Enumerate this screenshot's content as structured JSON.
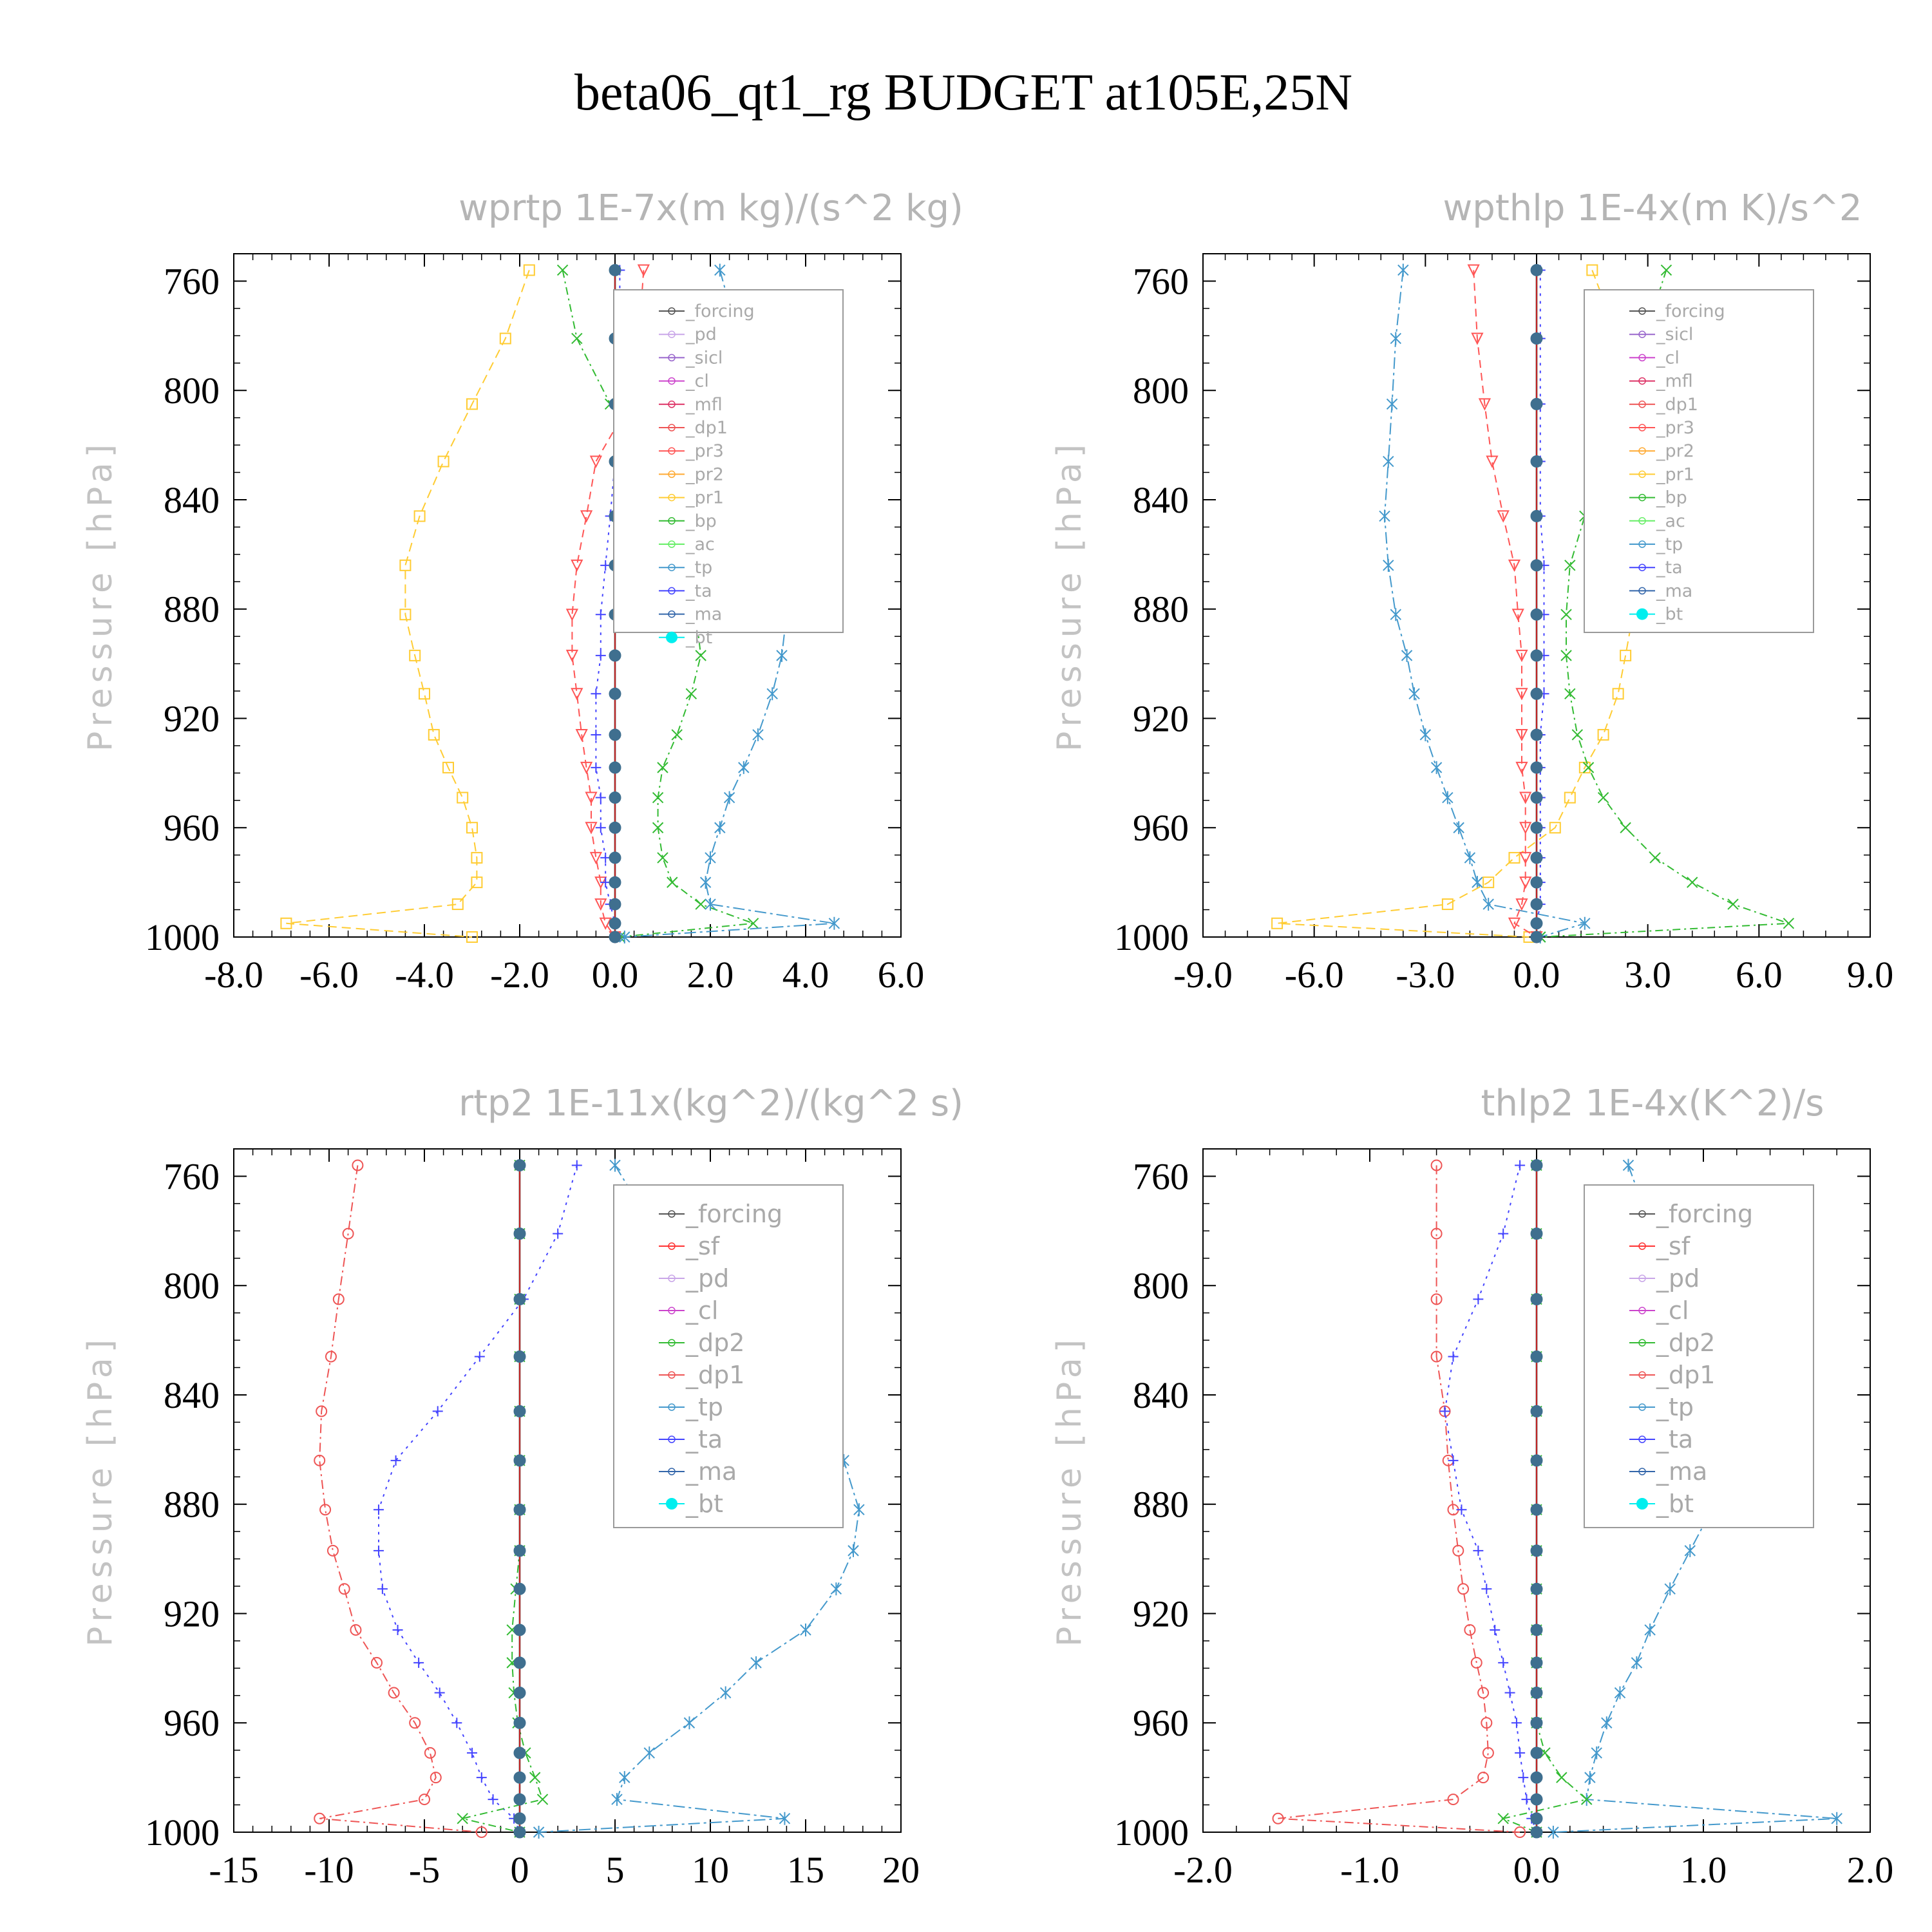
{
  "figure_title": "beta06_qt1_rg  BUDGET at105E,25N",
  "colors": {
    "forcing": "#555555",
    "sf": "#ff3333",
    "pd": "#c9a6e8",
    "sicl": "#9966cc",
    "cl": "#cc44cc",
    "mfl": "#dd3366",
    "dp1": "#ee5555",
    "pr3": "#ff5555",
    "pr2": "#ffaa33",
    "pr1": "#ffcc33",
    "bp": "#33bb33",
    "ac": "#66ee66",
    "tp": "#4499cc",
    "ta": "#4444ff",
    "ma": "#3366aa",
    "bt": "#00eeee",
    "dp2": "#33bb33"
  },
  "chart_data": [
    {
      "type": "line",
      "title": "wprtp  1E-7x(m kg)/(s^2 kg)",
      "ylabel": "Pressure [hPa]",
      "xlim": [
        -8,
        6
      ],
      "ylim": [
        1000,
        750
      ],
      "xticks": [
        "-8.0",
        "-6.0",
        "-4.0",
        "-2.0",
        "0.0",
        "2.0",
        "4.0",
        "6.0"
      ],
      "yticks": [
        "760",
        "800",
        "840",
        "880",
        "920",
        "960",
        "1000"
      ],
      "legend": [
        "_forcing",
        "_pd",
        "_sicl",
        "_cl",
        "_mfl",
        "_dp1",
        "_pr3",
        "_pr2",
        "_pr1",
        "_bp",
        "_ac",
        "_tp",
        "_ta",
        "_ma",
        "_bt"
      ],
      "y": [
        756,
        781,
        805,
        826,
        846,
        864,
        882,
        897,
        911,
        926,
        938,
        949,
        960,
        971,
        980,
        988,
        995,
        1000
      ],
      "series": [
        {
          "key": "pr1",
          "values": [
            -1.8,
            -2.3,
            -3.0,
            -3.6,
            -4.1,
            -4.4,
            -4.4,
            -4.2,
            -4.0,
            -3.8,
            -3.5,
            -3.2,
            -3.0,
            -2.9,
            -2.9,
            -3.3,
            -6.9,
            -3.0
          ]
        },
        {
          "key": "bp",
          "values": [
            -1.1,
            -0.8,
            -0.1,
            0.6,
            1.1,
            1.5,
            1.7,
            1.8,
            1.6,
            1.3,
            1.0,
            0.9,
            0.9,
            1.0,
            1.2,
            1.8,
            2.9,
            0.1
          ]
        },
        {
          "key": "tp",
          "values": [
            2.2,
            2.6,
            2.9,
            3.2,
            3.4,
            3.6,
            3.6,
            3.5,
            3.3,
            3.0,
            2.7,
            2.4,
            2.2,
            2.0,
            1.9,
            2.0,
            4.6,
            0.2
          ]
        },
        {
          "key": "pr3",
          "values": [
            0.6,
            0.5,
            0.3,
            -0.4,
            -0.6,
            -0.8,
            -0.9,
            -0.9,
            -0.8,
            -0.7,
            -0.6,
            -0.5,
            -0.5,
            -0.4,
            -0.3,
            -0.3,
            -0.2,
            0.0
          ]
        },
        {
          "key": "ta",
          "values": [
            0.1,
            0.1,
            0.1,
            0.0,
            -0.1,
            -0.2,
            -0.3,
            -0.3,
            -0.4,
            -0.4,
            -0.4,
            -0.3,
            -0.3,
            -0.2,
            -0.2,
            -0.1,
            0.0,
            0.0
          ]
        },
        {
          "key": "forcing",
          "values": [
            0,
            0,
            0,
            0,
            0,
            0,
            0,
            0,
            0,
            0,
            0,
            0,
            0,
            0,
            0,
            0,
            0,
            0
          ]
        }
      ]
    },
    {
      "type": "line",
      "title": "wpthlp  1E-4x(m K)/s^2",
      "ylabel": "Pressure [hPa]",
      "xlim": [
        -9,
        9
      ],
      "ylim": [
        1000,
        750
      ],
      "xticks": [
        "-9.0",
        "-6.0",
        "-3.0",
        "0.0",
        "3.0",
        "6.0",
        "9.0"
      ],
      "yticks": [
        "760",
        "800",
        "840",
        "880",
        "920",
        "960",
        "1000"
      ],
      "legend": [
        "_forcing",
        "_sicl",
        "_cl",
        "_mfl",
        "_dp1",
        "_pr3",
        "_pr2",
        "_pr1",
        "_bp",
        "_ac",
        "_tp",
        "_ta",
        "_ma",
        "_bt"
      ],
      "y": [
        756,
        781,
        805,
        826,
        846,
        864,
        882,
        897,
        911,
        926,
        938,
        949,
        960,
        971,
        980,
        988,
        995,
        1000
      ],
      "series": [
        {
          "key": "tp",
          "values": [
            -3.6,
            -3.8,
            -3.9,
            -4.0,
            -4.1,
            -4.0,
            -3.8,
            -3.5,
            -3.3,
            -3.0,
            -2.7,
            -2.4,
            -2.1,
            -1.8,
            -1.6,
            -1.3,
            1.3,
            0.1
          ]
        },
        {
          "key": "pr1",
          "values": [
            1.5,
            2.2,
            2.8,
            3.0,
            3.1,
            2.9,
            2.6,
            2.4,
            2.2,
            1.8,
            1.3,
            0.9,
            0.5,
            -0.6,
            -1.3,
            -2.4,
            -7.0,
            -0.2
          ]
        },
        {
          "key": "bp",
          "values": [
            3.5,
            2.9,
            2.3,
            1.8,
            1.3,
            0.9,
            0.8,
            0.8,
            0.9,
            1.1,
            1.4,
            1.8,
            2.4,
            3.2,
            4.2,
            5.3,
            6.8,
            0.1
          ]
        },
        {
          "key": "pr3",
          "values": [
            -1.7,
            -1.6,
            -1.4,
            -1.2,
            -0.9,
            -0.6,
            -0.5,
            -0.4,
            -0.4,
            -0.4,
            -0.4,
            -0.3,
            -0.3,
            -0.3,
            -0.3,
            -0.4,
            -0.6,
            0.0
          ]
        },
        {
          "key": "ta",
          "values": [
            0.1,
            0.1,
            0.1,
            0.1,
            0.1,
            0.2,
            0.2,
            0.2,
            0.2,
            0.1,
            0.1,
            0.1,
            0.1,
            0.1,
            0.1,
            0.1,
            0.0,
            0.0
          ]
        },
        {
          "key": "forcing",
          "values": [
            0,
            0,
            0,
            0,
            0,
            0,
            0,
            0,
            0,
            0,
            0,
            0,
            0,
            0,
            0,
            0,
            0,
            0
          ]
        }
      ]
    },
    {
      "type": "line",
      "title": "rtp2  1E-11x(kg^2)/(kg^2 s)",
      "ylabel": "Pressure [hPa]",
      "xlim": [
        -15,
        20
      ],
      "ylim": [
        1000,
        750
      ],
      "xticks": [
        "-15",
        "-10",
        "-5",
        "0",
        "5",
        "10",
        "15",
        "20"
      ],
      "yticks": [
        "760",
        "800",
        "840",
        "880",
        "920",
        "960",
        "1000"
      ],
      "legend": [
        "_forcing",
        "_sf",
        "_pd",
        "_cl",
        "_dp2",
        "_dp1",
        "_tp",
        "_ta",
        "_ma",
        "_bt"
      ],
      "y": [
        756,
        781,
        805,
        826,
        846,
        864,
        882,
        897,
        911,
        926,
        938,
        949,
        960,
        971,
        980,
        988,
        995,
        1000
      ],
      "series": [
        {
          "key": "dp1",
          "values": [
            -8.5,
            -9.0,
            -9.5,
            -9.9,
            -10.4,
            -10.5,
            -10.2,
            -9.8,
            -9.2,
            -8.6,
            -7.5,
            -6.6,
            -5.5,
            -4.7,
            -4.4,
            -5.0,
            -10.5,
            -2.0
          ]
        },
        {
          "key": "ta",
          "values": [
            3.0,
            2.0,
            0.2,
            -2.1,
            -4.3,
            -6.5,
            -7.4,
            -7.4,
            -7.2,
            -6.4,
            -5.3,
            -4.2,
            -3.3,
            -2.5,
            -2.0,
            -1.4,
            -0.3,
            0.0
          ]
        },
        {
          "key": "tp",
          "values": [
            5.0,
            7.2,
            9.4,
            12.0,
            15.2,
            17.0,
            17.8,
            17.5,
            16.6,
            15.0,
            12.4,
            10.8,
            8.9,
            6.8,
            5.5,
            5.1,
            13.9,
            1.0
          ]
        },
        {
          "key": "dp2",
          "values": [
            0,
            0,
            0,
            0,
            0,
            0,
            0,
            0,
            -0.2,
            -0.4,
            -0.4,
            -0.3,
            -0.1,
            0.3,
            0.8,
            1.2,
            -3.0,
            0.0
          ]
        },
        {
          "key": "forcing",
          "values": [
            0,
            0,
            0,
            0,
            0,
            0,
            0,
            0,
            0,
            0,
            0,
            0,
            0,
            0,
            0,
            0,
            0,
            0
          ]
        }
      ]
    },
    {
      "type": "line",
      "title": "thlp2  1E-4x(K^2)/s",
      "ylabel": "Pressure [hPa]",
      "xlim": [
        -2,
        2
      ],
      "ylim": [
        1000,
        750
      ],
      "xticks": [
        "-2.0",
        "-1.0",
        "0.0",
        "1.0",
        "2.0"
      ],
      "yticks": [
        "760",
        "800",
        "840",
        "880",
        "920",
        "960",
        "1000"
      ],
      "legend": [
        "_forcing",
        "_sf",
        "_pd",
        "_cl",
        "_dp2",
        "_dp1",
        "_tp",
        "_ta",
        "_ma",
        "_bt"
      ],
      "y": [
        756,
        781,
        805,
        826,
        846,
        864,
        882,
        897,
        911,
        926,
        938,
        949,
        960,
        971,
        980,
        988,
        995,
        1000
      ],
      "series": [
        {
          "key": "dp1",
          "values": [
            -0.6,
            -0.6,
            -0.6,
            -0.6,
            -0.55,
            -0.53,
            -0.5,
            -0.47,
            -0.44,
            -0.4,
            -0.36,
            -0.32,
            -0.3,
            -0.29,
            -0.32,
            -0.5,
            -1.55,
            -0.1
          ]
        },
        {
          "key": "ta",
          "values": [
            -0.1,
            -0.2,
            -0.35,
            -0.5,
            -0.55,
            -0.5,
            -0.45,
            -0.35,
            -0.3,
            -0.25,
            -0.2,
            -0.16,
            -0.12,
            -0.1,
            -0.08,
            -0.06,
            -0.03,
            0.0
          ]
        },
        {
          "key": "tp",
          "values": [
            0.55,
            0.7,
            0.9,
            1.05,
            1.15,
            1.12,
            1.05,
            0.92,
            0.8,
            0.68,
            0.6,
            0.5,
            0.42,
            0.36,
            0.32,
            0.3,
            1.8,
            0.1
          ]
        },
        {
          "key": "dp2",
          "values": [
            0,
            0,
            0,
            0,
            0,
            0,
            0,
            0,
            0,
            0,
            0,
            0,
            0,
            0.05,
            0.15,
            0.3,
            -0.2,
            0.0
          ]
        },
        {
          "key": "forcing",
          "values": [
            0,
            0,
            0,
            0,
            0,
            0,
            0,
            0,
            0,
            0,
            0,
            0,
            0,
            0,
            0,
            0,
            0,
            0
          ]
        }
      ]
    }
  ]
}
